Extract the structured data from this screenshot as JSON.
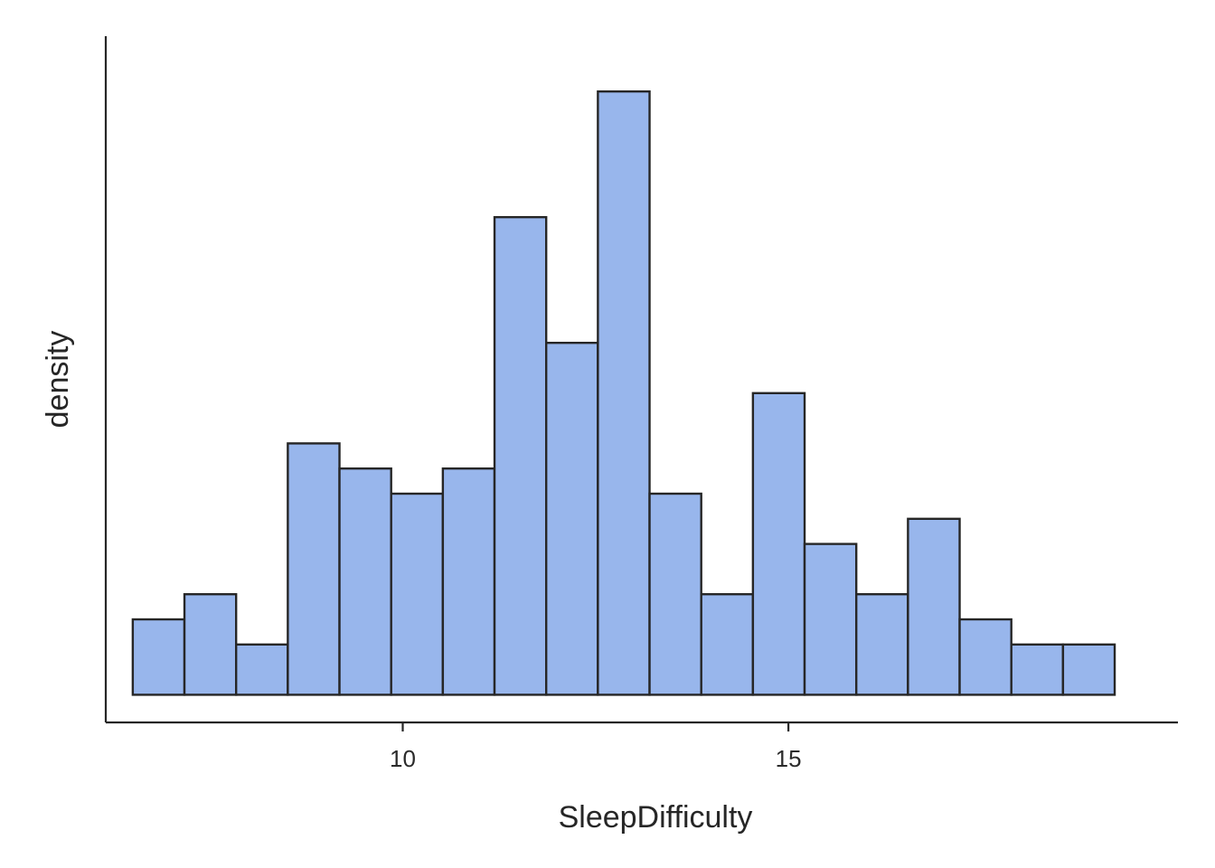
{
  "chart_data": {
    "type": "bar",
    "subtype": "histogram",
    "xlabel": "SleepDifficulty",
    "ylabel": "density",
    "xlim": [
      6.15,
      20.05
    ],
    "ylim": [
      -0.0011,
      0.0262
    ],
    "x_ticks": [
      10,
      15
    ],
    "y_ticks_shown": false,
    "grid": false,
    "legend": "none",
    "bar_color": "#98B6EC",
    "edge_color": "#262626",
    "bin_edges": [
      6.5,
      7.17,
      7.84,
      8.51,
      9.18,
      9.85,
      10.52,
      11.19,
      11.86,
      12.53,
      13.2,
      13.87,
      14.54,
      15.21,
      15.88,
      16.55,
      17.22,
      17.89,
      18.56,
      19.23
    ],
    "values": [
      0.003,
      0.004,
      0.002,
      0.01,
      0.009,
      0.008,
      0.009,
      0.019,
      0.014,
      0.024,
      0.008,
      0.004,
      0.012,
      0.006,
      0.004,
      0.007,
      0.003,
      0.002,
      0.002
    ]
  }
}
